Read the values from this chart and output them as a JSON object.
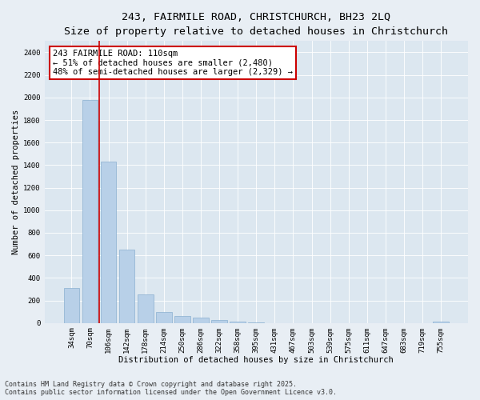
{
  "title_line1": "243, FAIRMILE ROAD, CHRISTCHURCH, BH23 2LQ",
  "title_line2": "Size of property relative to detached houses in Christchurch",
  "xlabel": "Distribution of detached houses by size in Christchurch",
  "ylabel": "Number of detached properties",
  "categories": [
    "34sqm",
    "70sqm",
    "106sqm",
    "142sqm",
    "178sqm",
    "214sqm",
    "250sqm",
    "286sqm",
    "322sqm",
    "358sqm",
    "395sqm",
    "431sqm",
    "467sqm",
    "503sqm",
    "539sqm",
    "575sqm",
    "611sqm",
    "647sqm",
    "683sqm",
    "719sqm",
    "755sqm"
  ],
  "values": [
    310,
    1980,
    1430,
    650,
    250,
    100,
    65,
    50,
    25,
    15,
    8,
    0,
    0,
    0,
    0,
    0,
    0,
    0,
    0,
    0,
    10
  ],
  "bar_color": "#b8d0e8",
  "bar_edge_color": "#8aafd0",
  "vline_x_idx": 1.5,
  "vline_color": "#cc0000",
  "annotation_text": "243 FAIRMILE ROAD: 110sqm\n← 51% of detached houses are smaller (2,480)\n48% of semi-detached houses are larger (2,329) →",
  "annotation_box_color": "#ffffff",
  "annotation_box_edge": "#cc0000",
  "ylim": [
    0,
    2500
  ],
  "yticks": [
    0,
    200,
    400,
    600,
    800,
    1000,
    1200,
    1400,
    1600,
    1800,
    2000,
    2200,
    2400
  ],
  "bg_color": "#e8eef4",
  "plot_bg_color": "#dce7f0",
  "grid_color": "#ffffff",
  "footer_text": "Contains HM Land Registry data © Crown copyright and database right 2025.\nContains public sector information licensed under the Open Government Licence v3.0.",
  "title_fontsize": 9.5,
  "subtitle_fontsize": 8.5,
  "axis_label_fontsize": 7.5,
  "tick_fontsize": 6.5,
  "annotation_fontsize": 7.5,
  "footer_fontsize": 6.0
}
